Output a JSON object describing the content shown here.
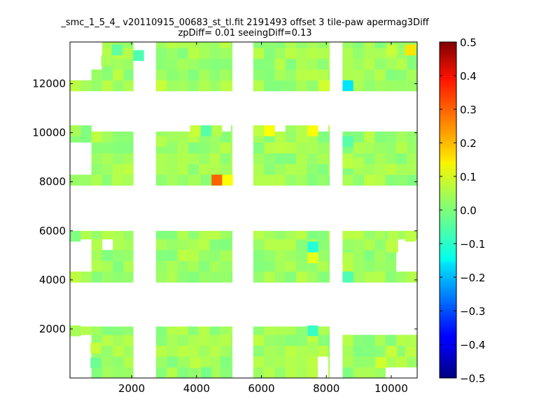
{
  "chart_data": {
    "type": "heatmap",
    "title": "_smc_1_5_4_ v20110915_00683_st_tl.fit 2191493 offset 3 tile-paw apermag3Diff",
    "subtitle": "zpDiff= 0.01 seeingDiff=0.13",
    "xlim": [
      100,
      10800
    ],
    "ylim": [
      0,
      13700
    ],
    "xticks": [
      2000,
      4000,
      6000,
      8000,
      10000
    ],
    "xtick_labels": [
      "2000",
      "4000",
      "6000",
      "8000",
      "10000"
    ],
    "yticks": [
      2000,
      4000,
      6000,
      8000,
      10000,
      12000
    ],
    "ytick_labels": [
      "2000",
      "4000",
      "6000",
      "8000",
      "10000",
      "12000"
    ],
    "grid": false,
    "colorscale": {
      "name": "jet",
      "range": [
        -0.5,
        0.5
      ],
      "ticks": [
        0.5,
        0.4,
        0.3,
        0.2,
        0.1,
        0.0,
        -0.1,
        -0.2,
        -0.3,
        -0.4,
        -0.5
      ],
      "tick_labels": [
        "0.5",
        "0.4",
        "0.3",
        "0.2",
        "0.1",
        "0.0",
        "−0.1",
        "−0.2",
        "−0.3",
        "−0.4",
        "−0.5"
      ]
    },
    "cell_size": [
      330,
      440
    ],
    "base_value": 0.03,
    "detectors": [
      {
        "x0": 100,
        "x1": 2050,
        "y0": 0,
        "y1": 2100
      },
      {
        "x0": 2750,
        "x1": 5100,
        "y0": 0,
        "y1": 2100
      },
      {
        "x0": 5750,
        "x1": 8100,
        "y0": 0,
        "y1": 2100
      },
      {
        "x0": 8500,
        "x1": 10800,
        "y0": 0,
        "y1": 2100
      },
      {
        "x0": 100,
        "x1": 2050,
        "y0": 3900,
        "y1": 6000
      },
      {
        "x0": 2750,
        "x1": 5100,
        "y0": 3900,
        "y1": 6000
      },
      {
        "x0": 5750,
        "x1": 8100,
        "y0": 3900,
        "y1": 6000
      },
      {
        "x0": 8500,
        "x1": 10800,
        "y0": 3900,
        "y1": 6000
      },
      {
        "x0": 100,
        "x1": 2050,
        "y0": 7850,
        "y1": 10300
      },
      {
        "x0": 2750,
        "x1": 5100,
        "y0": 7850,
        "y1": 10300
      },
      {
        "x0": 5750,
        "x1": 8100,
        "y0": 7850,
        "y1": 10300
      },
      {
        "x0": 8500,
        "x1": 10800,
        "y0": 7850,
        "y1": 10300
      },
      {
        "x0": 100,
        "x1": 2050,
        "y0": 11700,
        "y1": 13700
      },
      {
        "x0": 2750,
        "x1": 5100,
        "y0": 11700,
        "y1": 13700
      },
      {
        "x0": 5750,
        "x1": 8100,
        "y0": 11700,
        "y1": 13700
      },
      {
        "x0": 8500,
        "x1": 10800,
        "y0": 11700,
        "y1": 13700
      }
    ],
    "blank_regions": [
      {
        "x0": 100,
        "x1": 730,
        "y0": 0,
        "y1": 1700
      },
      {
        "x0": 100,
        "x1": 730,
        "y0": 4400,
        "y1": 5600
      },
      {
        "x0": 100,
        "x1": 730,
        "y0": 8300,
        "y1": 9500
      },
      {
        "x0": 100,
        "x1": 730,
        "y0": 12200,
        "y1": 13700
      },
      {
        "x0": 730,
        "x1": 1060,
        "y0": 12600,
        "y1": 13700
      },
      {
        "x0": 1060,
        "x1": 1390,
        "y0": 5100,
        "y1": 5600
      },
      {
        "x0": 1060,
        "x1": 1390,
        "y0": 10000,
        "y1": 10300
      },
      {
        "x0": 730,
        "x1": 2050,
        "y0": 10000,
        "y1": 10300
      },
      {
        "x0": 2750,
        "x1": 4100,
        "y0": 10000,
        "y1": 10300
      },
      {
        "x0": 4800,
        "x1": 5100,
        "y0": 10000,
        "y1": 10300
      },
      {
        "x0": 6400,
        "x1": 6800,
        "y0": 10000,
        "y1": 10300
      },
      {
        "x0": 7750,
        "x1": 8100,
        "y0": 10000,
        "y1": 10300
      },
      {
        "x0": 8500,
        "x1": 10800,
        "y0": 10000,
        "y1": 10300
      },
      {
        "x0": 8500,
        "x1": 10800,
        "y0": 1700,
        "y1": 2100
      },
      {
        "x0": 7800,
        "x1": 8100,
        "y0": 0,
        "y1": 1000
      },
      {
        "x0": 9900,
        "x1": 10800,
        "y0": 0,
        "y1": 400
      },
      {
        "x0": 10200,
        "x1": 10800,
        "y0": 4400,
        "y1": 5600
      }
    ],
    "cells": [
      {
        "x": 1390,
        "y": 13150,
        "v": -0.03
      },
      {
        "x": 1060,
        "y": 12710,
        "v": 0.04
      },
      {
        "x": 2050,
        "y": 12930,
        "v": -0.05
      },
      {
        "x": 2750,
        "y": 11700,
        "v": 0.07
      },
      {
        "x": 5750,
        "y": 11700,
        "v": 0.05
      },
      {
        "x": 7770,
        "y": 11700,
        "v": 0.08
      },
      {
        "x": 8500,
        "y": 11700,
        "v": -0.15
      },
      {
        "x": 9850,
        "y": 13150,
        "v": 0.07
      },
      {
        "x": 10430,
        "y": 13150,
        "v": 0.15
      },
      {
        "x": 3800,
        "y": 9860,
        "v": 0.07
      },
      {
        "x": 4130,
        "y": 9860,
        "v": -0.04
      },
      {
        "x": 4460,
        "y": 9860,
        "v": 0.05
      },
      {
        "x": 5750,
        "y": 9860,
        "v": 0.06
      },
      {
        "x": 6080,
        "y": 9860,
        "v": 0.12
      },
      {
        "x": 7090,
        "y": 9860,
        "v": 0.05
      },
      {
        "x": 7420,
        "y": 9860,
        "v": 0.12
      },
      {
        "x": 8500,
        "y": 9420,
        "v": -0.04
      },
      {
        "x": 8500,
        "y": 8540,
        "v": 0.06
      },
      {
        "x": 8830,
        "y": 8540,
        "v": 0.05
      },
      {
        "x": 4460,
        "y": 7850,
        "v": 0.28
      },
      {
        "x": 4790,
        "y": 7850,
        "v": 0.12
      },
      {
        "x": 4130,
        "y": 7850,
        "v": 0.01
      },
      {
        "x": 1390,
        "y": 7850,
        "v": 0.05
      },
      {
        "x": 1720,
        "y": 7850,
        "v": 0.04
      },
      {
        "x": 2750,
        "y": 9420,
        "v": 0.05
      },
      {
        "x": 5750,
        "y": 7850,
        "v": 0.05
      },
      {
        "x": 100,
        "y": 9860,
        "v": 0.04
      },
      {
        "x": 100,
        "y": 5560,
        "v": 0.0
      },
      {
        "x": 7420,
        "y": 5120,
        "v": -0.09
      },
      {
        "x": 7420,
        "y": 4680,
        "v": 0.1
      },
      {
        "x": 8500,
        "y": 4680,
        "v": 0.05
      },
      {
        "x": 8500,
        "y": 3900,
        "v": -0.05
      },
      {
        "x": 9880,
        "y": 5560,
        "v": 0.05
      },
      {
        "x": 9880,
        "y": 5120,
        "v": 0.06
      },
      {
        "x": 10430,
        "y": 5560,
        "v": 0.06
      },
      {
        "x": 100,
        "y": 3900,
        "v": 0.06
      },
      {
        "x": 100,
        "y": 1700,
        "v": 0.04
      },
      {
        "x": 7420,
        "y": 1700,
        "v": -0.07
      },
      {
        "x": 7420,
        "y": 1270,
        "v": 0.06
      },
      {
        "x": 7420,
        "y": 1000,
        "v": 0.04
      },
      {
        "x": 730,
        "y": 1000,
        "v": 0.07
      },
      {
        "x": 730,
        "y": 400,
        "v": -0.02
      },
      {
        "x": 4130,
        "y": 0,
        "v": -0.01
      },
      {
        "x": 3800,
        "y": 400,
        "v": 0.06
      },
      {
        "x": 9520,
        "y": 400,
        "v": 0.08
      },
      {
        "x": 9850,
        "y": 850,
        "v": 0.07
      },
      {
        "x": 10430,
        "y": 850,
        "v": 0.06
      }
    ]
  }
}
